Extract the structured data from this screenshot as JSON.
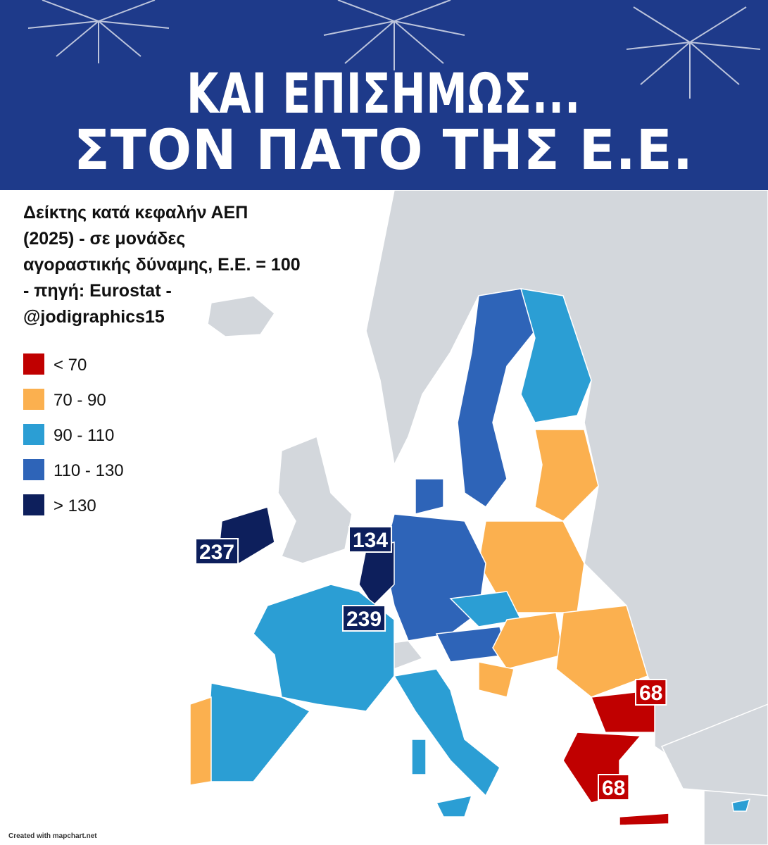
{
  "header": {
    "title_lines": [
      "ΚΑΙ ΕΠΙΣΗΜΩΣ...",
      "ΣΤΟΝ ΠΑΤΟ ΤΗΣ Ε.Ε."
    ]
  },
  "subtitle_lines": [
    "Δείκτης κατά κεφαλήν ΑΕΠ",
    "(2025) - σε μονάδες",
    "αγοραστικής δύναμης, Ε.Ε. = 100",
    "- πηγή: Eurostat -",
    "@jodigraphics15"
  ],
  "legend": {
    "items": [
      {
        "label": "< 70",
        "color": "#c00000"
      },
      {
        "label": "70 - 90",
        "color": "#fbb04f"
      },
      {
        "label": "90 - 110",
        "color": "#2b9ed4"
      },
      {
        "label": "110 - 130",
        "color": "#2e64b8"
      },
      {
        "label": "> 130",
        "color": "#0d1f5c"
      }
    ]
  },
  "map_labels": [
    237,
    134,
    239,
    68,
    68
  ],
  "footer": "Created with mapchart.net"
}
